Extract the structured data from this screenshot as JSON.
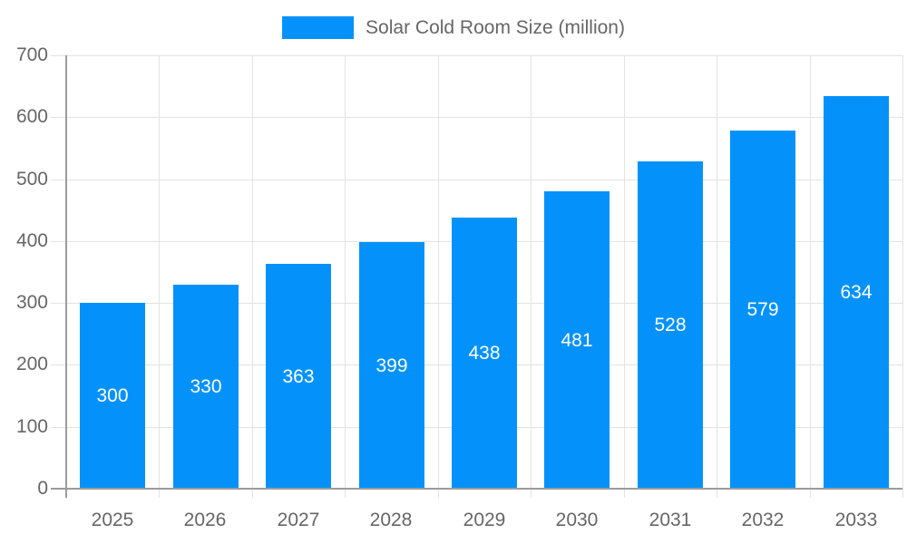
{
  "chart_data": {
    "type": "bar",
    "title": "",
    "legend": {
      "label": "Solar Cold Room Size (million)",
      "position": "top-center"
    },
    "categories": [
      "2025",
      "2026",
      "2027",
      "2028",
      "2029",
      "2030",
      "2031",
      "2032",
      "2033"
    ],
    "series": [
      {
        "name": "Solar Cold Room Size (million)",
        "values": [
          300,
          330,
          363,
          399,
          438,
          481,
          528,
          579,
          634
        ]
      }
    ],
    "value_labels": [
      "300",
      "330",
      "363",
      "399",
      "438",
      "481",
      "528",
      "579",
      "634"
    ],
    "xlabel": "",
    "ylabel": "",
    "ylim": [
      0,
      700
    ],
    "ytick_step": 100,
    "ytick_labels": [
      "0",
      "100",
      "200",
      "300",
      "400",
      "500",
      "600",
      "700"
    ],
    "grid": true,
    "colors": {
      "bar": "#0492fa",
      "value_label_text": "#ffffff",
      "tick_label_text": "#666666",
      "legend_text": "#666666",
      "gridline": "#e3e3e3",
      "axis_line": "#9c9c9c",
      "background": "#ffffff"
    }
  }
}
